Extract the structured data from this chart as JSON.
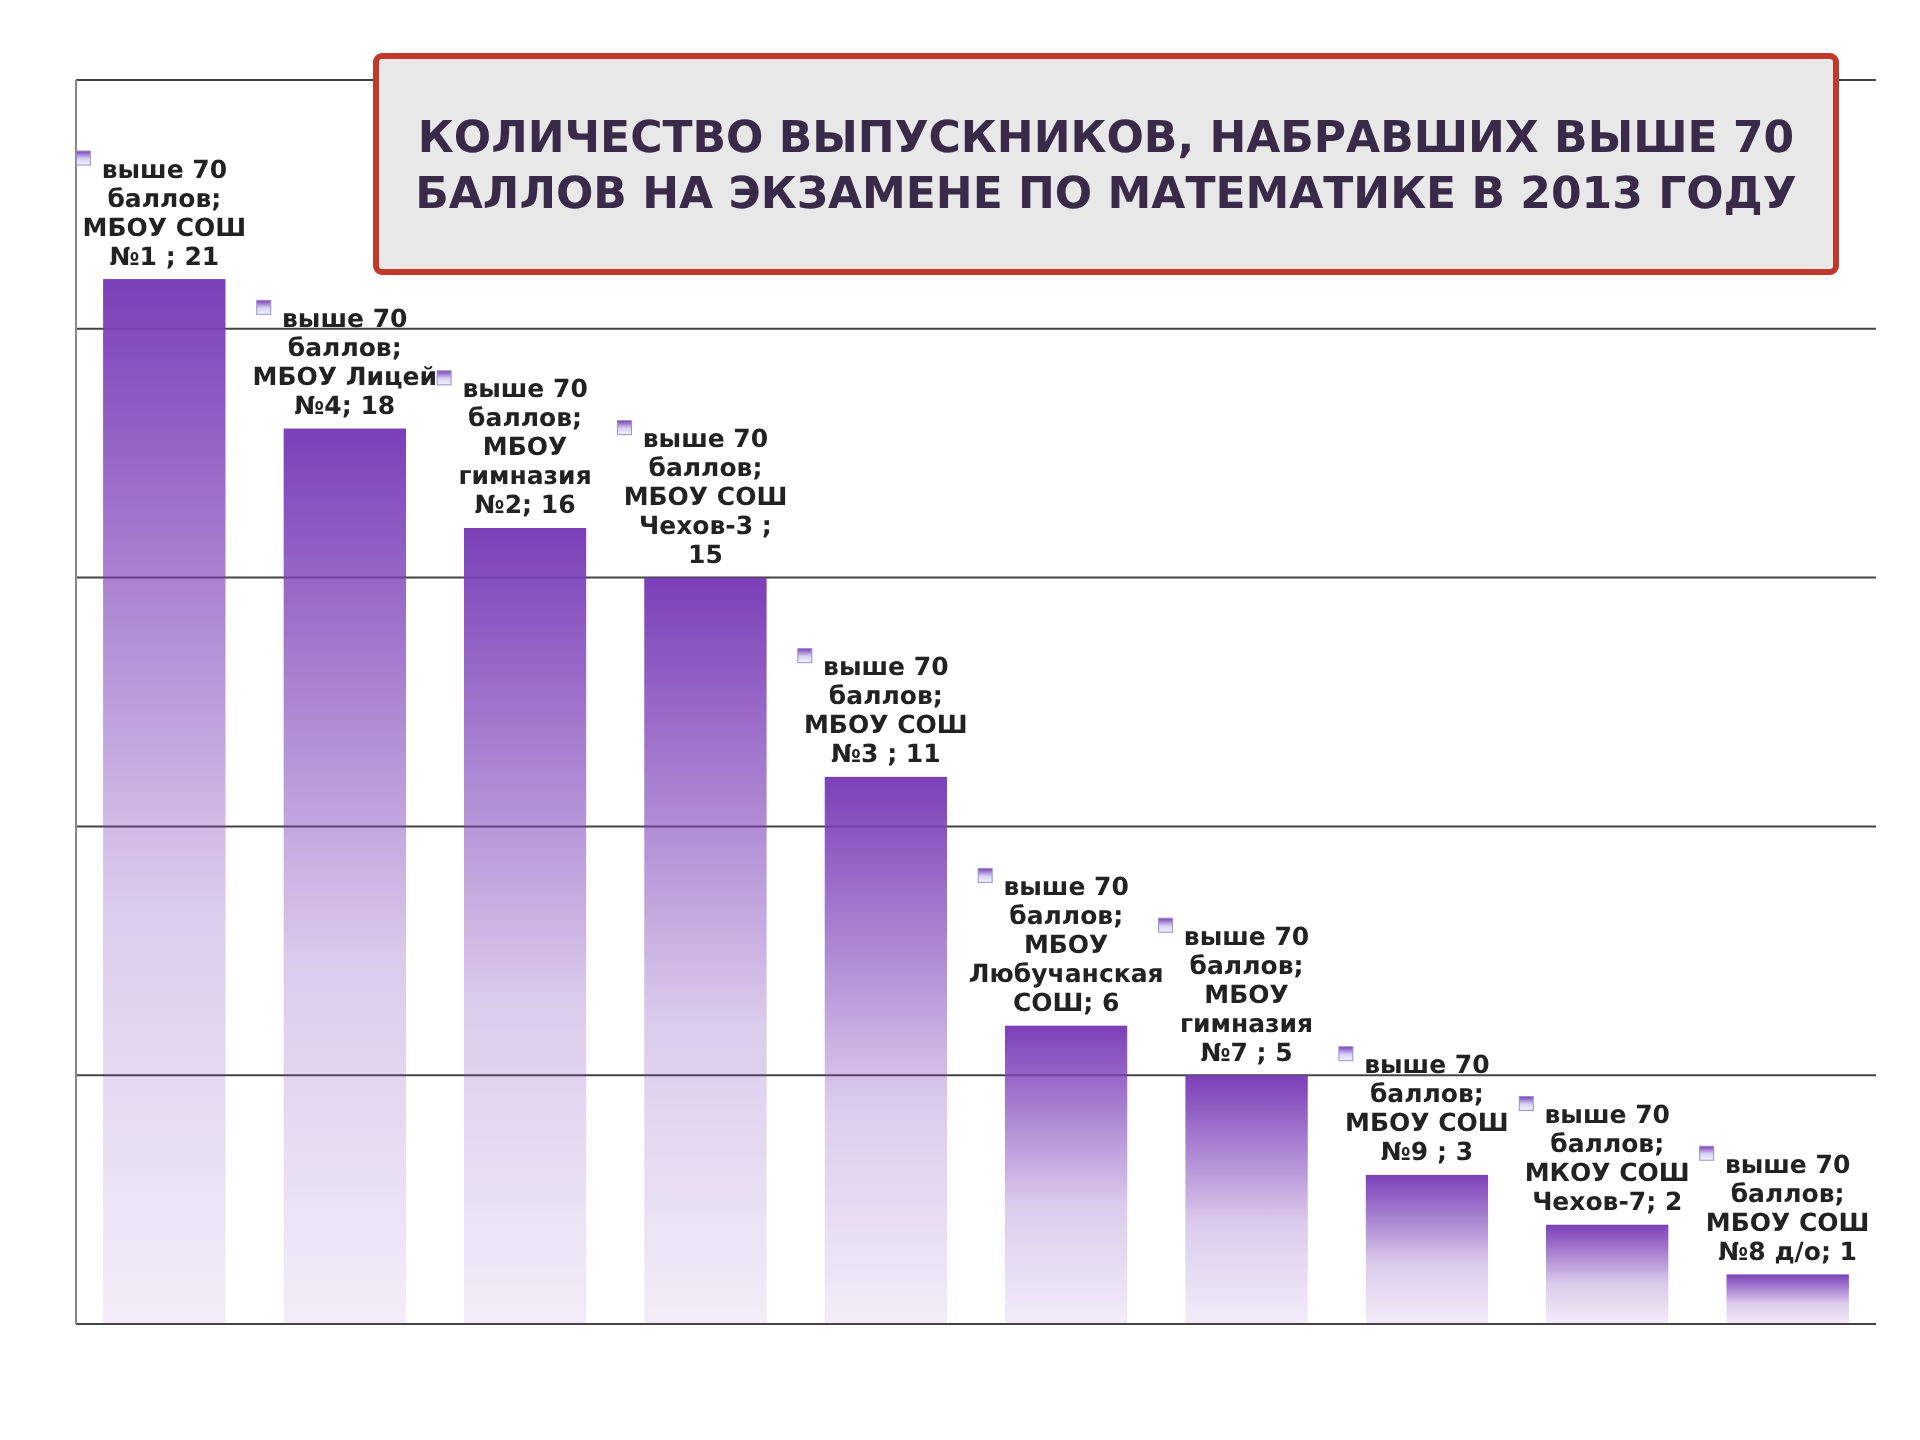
{
  "chart_data": {
    "type": "bar",
    "title": "КОЛИЧЕСТВО ВЫПУСКНИКОВ, НАБРАВШИХ ВЫШЕ 70 БАЛЛОВ НА ЭКЗАМЕНЕ ПО МАТЕМАТИКЕ В 2013 ГОДУ",
    "categories": [
      null,
      null,
      null,
      null,
      null,
      null,
      null,
      null,
      null,
      null
    ],
    "values": [
      21,
      18,
      16,
      15,
      11,
      6,
      5,
      3,
      2,
      1
    ],
    "value_labels": [
      "выше 70 баллов; МБОУ СОШ №1 ; 21",
      "выше 70 баллов; МБОУ Лицей №4; 18",
      "выше 70 баллов; МБОУ гимназия №2; 16",
      "выше 70 баллов; МБОУ СОШ Чехов-3 ; 15",
      "выше 70 баллов; МБОУ СОШ №3 ; 11",
      "выше 70 баллов; МБОУ Любучанская СОШ; 6",
      "выше 70 баллов; МБОУ гимназия №7 ; 5",
      "выше 70 баллов; МБОУ СОШ №9 ; 3",
      "выше 70 баллов; МКОУ СОШ Чехов-7; 2",
      "выше 70 баллов; МБОУ СОШ №8 д/о; 1"
    ],
    "color": "#7b3fb8",
    "ylim": [
      0,
      25
    ],
    "yticks": [
      {
        "value": 0,
        "label": null
      },
      {
        "value": 5,
        "label": null
      },
      {
        "value": 10,
        "label": null
      },
      {
        "value": 15,
        "label": null
      },
      {
        "value": 20,
        "label": null
      },
      {
        "value": 25,
        "label": null
      }
    ],
    "grid": "y"
  }
}
